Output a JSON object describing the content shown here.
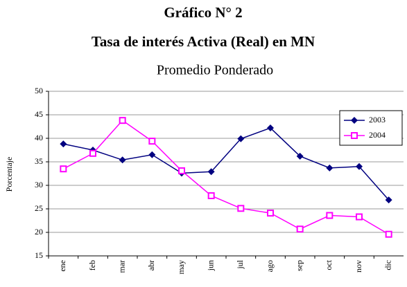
{
  "chart_data": {
    "type": "line",
    "title": "Gráfico N° 2",
    "subtitle": "Tasa de interés Activa (Real) en MN",
    "caption": "Promedio Ponderado",
    "y_label": "Porcentaje",
    "categories": [
      "ene",
      "feb",
      "mar",
      "abr",
      "may",
      "jun",
      "jul",
      "ago",
      "sep",
      "oct",
      "nov",
      "dic"
    ],
    "series": [
      {
        "name": "2003",
        "color": "#000080",
        "marker": "diamond",
        "values": [
          38.8,
          37.5,
          35.4,
          36.5,
          32.6,
          32.9,
          39.9,
          42.2,
          36.2,
          33.7,
          34.0,
          26.9
        ]
      },
      {
        "name": "2004",
        "color": "#ff00ff",
        "marker": "square",
        "values": [
          33.5,
          36.8,
          43.8,
          39.4,
          33.1,
          27.8,
          25.1,
          24.1,
          20.7,
          23.6,
          23.3,
          19.6
        ]
      }
    ],
    "ylim": [
      15,
      50
    ],
    "yticks": [
      15,
      20,
      25,
      30,
      35,
      40,
      45,
      50
    ],
    "grid": true,
    "legend": "upper right"
  }
}
